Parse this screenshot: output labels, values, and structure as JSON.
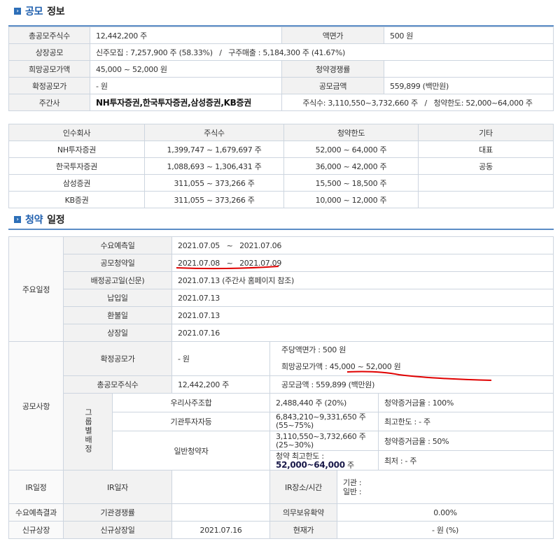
{
  "ipo_info": {
    "title_highlight": "공모",
    "title_rest": "정보",
    "rows": [
      {
        "l1": "총공모주식수",
        "v1": "12,442,200 주",
        "l2": "액면가",
        "v2": "500 원"
      },
      {
        "l1": "상장공모",
        "v1": "신주모집 : 7,257,900 주 (58.33%)   /   구주매출 : 5,184,300 주 (41.67%)"
      },
      {
        "l1": "희망공모가액",
        "v1": "45,000 ~ 52,000 원",
        "l2": "청약경쟁률",
        "v2": ""
      },
      {
        "l1": "확정공모가",
        "v1": "- 원",
        "l2": "공모금액",
        "v2": "559,899 (백만원)"
      },
      {
        "l1": "주간사",
        "v1": "NH투자증권,한국투자증권,삼성증권,KB증권",
        "v2": "주식수: 3,110,550~3,732,660 주   /   청약한도: 52,000~64,000 주"
      }
    ]
  },
  "underwriters": {
    "headers": [
      "인수회사",
      "주식수",
      "청약한도",
      "기타"
    ],
    "rows": [
      [
        "NH투자증권",
        "1,399,747 ~ 1,679,697 주",
        "52,000 ~ 64,000 주",
        "대표"
      ],
      [
        "한국투자증권",
        "1,088,693 ~ 1,306,431 주",
        "36,000 ~ 42,000 주",
        "공동"
      ],
      [
        "삼성증권",
        "311,055 ~ 373,266 주",
        "15,500 ~ 18,500 주",
        ""
      ],
      [
        "KB증권",
        "311,055 ~ 373,266 주",
        "10,000 ~ 12,000 주",
        ""
      ]
    ]
  },
  "schedule": {
    "title_highlight": "청약",
    "title_rest": "일정",
    "main_label": "주요일정",
    "rows": [
      [
        "수요예측일",
        "2021.07.05   ~   2021.07.06"
      ],
      [
        "공모청약일",
        "2021.07.08   ~   2021.07.09"
      ],
      [
        "배정공고일(신문)",
        "2021.07.13 (주간사 홈페이지 참조)"
      ],
      [
        "납입일",
        "2021.07.13"
      ],
      [
        "환불일",
        "2021.07.13"
      ],
      [
        "상장일",
        "2021.07.16"
      ]
    ],
    "offer": {
      "label": "공모사항",
      "final_price_label": "확정공모가",
      "final_price": "- 원",
      "par_value": "주당액면가 :  500 원",
      "desired_price": "희망공모가액 :  45,000 ~ 52,000 원",
      "total_shares_label": "총공모주식수",
      "total_shares": "12,442,200 주",
      "amount": "공모금액 : 559,899 (백만원)",
      "group_label": "그룹별배정",
      "groups": [
        {
          "name": "우리사주조합",
          "shares": "2,488,440 주  (20%)",
          "note": "청약증거금율 : 100%"
        },
        {
          "name": "기관투자자등",
          "shares": "6,843,210~9,331,650 주 (55~75%)",
          "note": "최고한도 :  - 주"
        },
        {
          "name": "일반청약자",
          "shares": "3,110,550~3,732,660 주 (25~30%)",
          "note": "청약증거금율 : 50%",
          "limit_label": "청약 최고한도 :",
          "limit": "52,000~64,000",
          "limit_unit": " 주",
          "min": "최저 :  - 주"
        }
      ]
    },
    "ir": {
      "label": "IR일정",
      "date_label": "IR일자",
      "date": "",
      "place_label": "IR장소/시간",
      "inst": "기관 :",
      "general": "일반 :"
    },
    "demand": {
      "label": "수요예측결과",
      "comp_label": "기관경쟁률",
      "comp": "",
      "lockup_label": "의무보유확약",
      "lockup": "0.00%"
    },
    "listing": {
      "label": "신규상장",
      "date_label": "신규상장일",
      "date": "2021.07.16",
      "price_label": "현재가",
      "price": "- 원 (%)"
    }
  },
  "colors": {
    "accent": "#1f5fae",
    "annotation": "#e00000"
  }
}
